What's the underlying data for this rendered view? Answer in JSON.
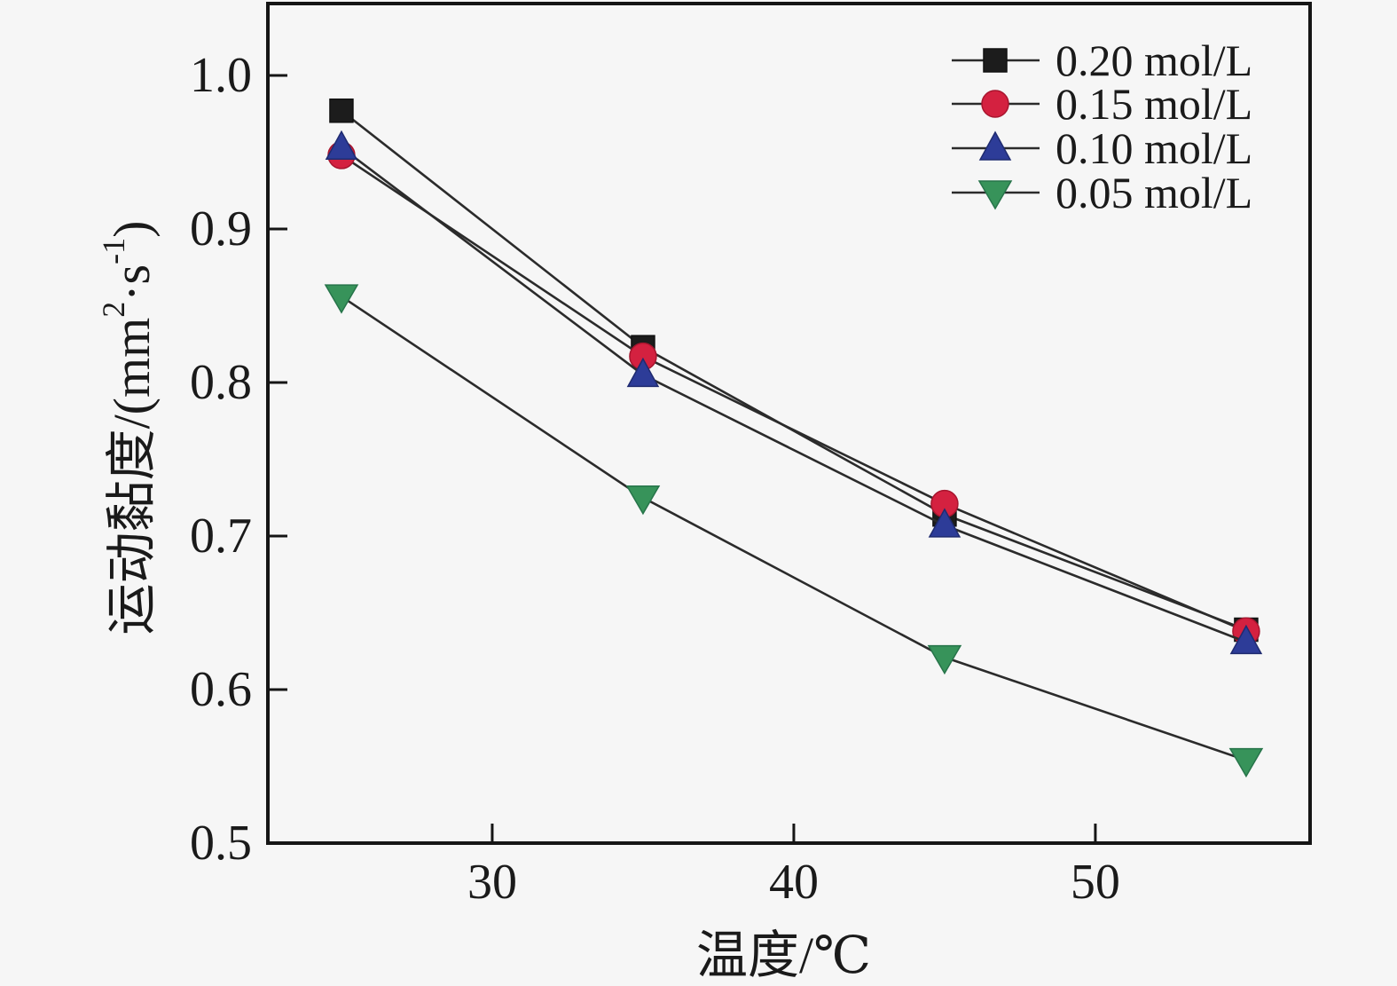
{
  "figure": {
    "background": "#f6f6f6",
    "frame_color": "#151515",
    "text_color": "#1a1a1a"
  },
  "chart_data": {
    "type": "line",
    "title": "",
    "xlabel": "温度/℃",
    "ylabel": "运动黏度/(mm²·s⁻¹)",
    "ylabel_parts": [
      {
        "text": "运动黏度/(mm"
      },
      {
        "text": "2",
        "sup": true
      },
      {
        "text": "·s"
      },
      {
        "text": "-1",
        "sup": true
      },
      {
        "text": ")"
      }
    ],
    "x": [
      25,
      35,
      45,
      55
    ],
    "xticks": [
      30,
      40,
      50
    ],
    "yticks": [
      0.5,
      0.6,
      0.7,
      0.8,
      0.9,
      1.0
    ],
    "xlim": [
      22.56,
      57.12
    ],
    "ylim": [
      0.5,
      1.0468
    ],
    "grid": false,
    "line_color": "#2b2b2b",
    "legend_position": "top-right",
    "series": [
      {
        "name": "0.20 mol/L",
        "marker": "square",
        "color": "#1c1c1c",
        "edge": "#111111",
        "values": [
          0.977,
          0.823,
          0.714,
          0.639
        ]
      },
      {
        "name": "0.15 mol/L",
        "marker": "circle",
        "color": "#d42140",
        "edge": "#a8152e",
        "values": [
          0.948,
          0.817,
          0.721,
          0.638
        ]
      },
      {
        "name": "0.10 mol/L",
        "marker": "triangle-up",
        "color": "#2d3c98",
        "edge": "#1f2b70",
        "values": [
          0.953,
          0.805,
          0.707,
          0.631
        ]
      },
      {
        "name": "0.05 mol/L",
        "marker": "triangle-down",
        "color": "#37935a",
        "edge": "#27744a",
        "values": [
          0.856,
          0.725,
          0.621,
          0.554
        ]
      }
    ]
  }
}
